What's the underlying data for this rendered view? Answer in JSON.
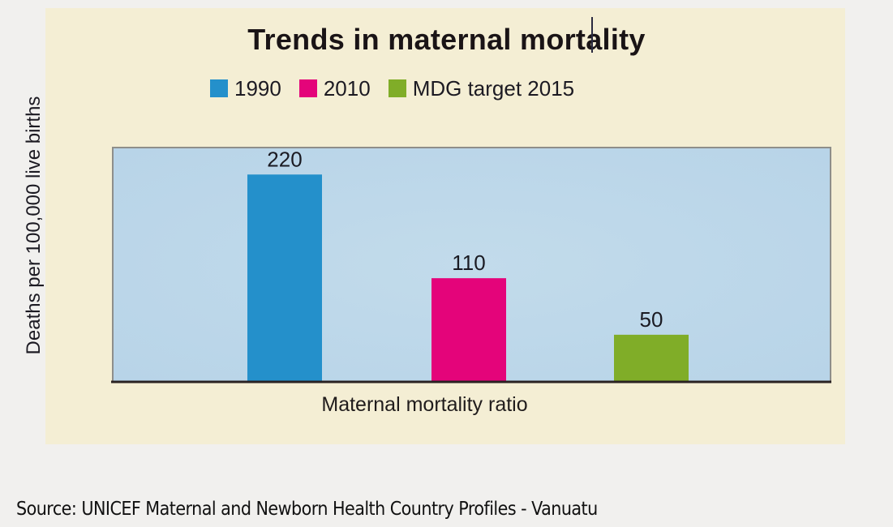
{
  "chart_data": {
    "type": "bar",
    "title": "Trends in maternal mortality",
    "xlabel": "Maternal mortality ratio",
    "ylabel": "Deaths per 100,000 live births",
    "categories": [
      "1990",
      "2010",
      "MDG target 2015"
    ],
    "values": [
      220,
      110,
      50
    ],
    "data_labels": [
      "220",
      "110",
      "50"
    ],
    "ylim": [
      0,
      240
    ],
    "grid": false,
    "legend": {
      "placement": "top-center",
      "entries": [
        {
          "label": "1990",
          "color": "#2490cb"
        },
        {
          "label": "2010",
          "color": "#e4047a"
        },
        {
          "label": "MDG target 2015",
          "color": "#80ad28"
        }
      ]
    },
    "colors": {
      "plot_background": "#c2dbeb",
      "panel_background": "#f4eed4",
      "axis": "#2a2222"
    }
  },
  "source": "Source: UNICEF Maternal and Newborn Health Country Profiles - Vanuatu"
}
